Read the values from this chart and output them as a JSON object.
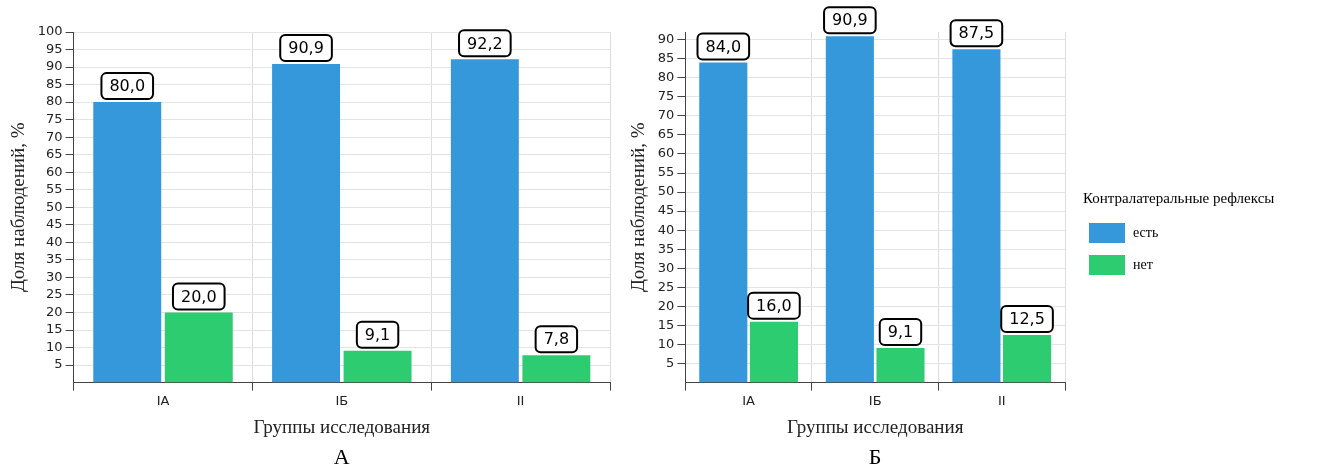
{
  "chart_data": [
    {
      "type": "bar",
      "xlabel": "Группы исследования",
      "ylabel": "Доля наблюдений, %",
      "categories": [
        "IA",
        "IБ",
        "II"
      ],
      "series": [
        {
          "color": "#3498db",
          "values": [
            80.0,
            90.9,
            92.2
          ],
          "value_labels": [
            "80,0",
            "90,9",
            "92,2"
          ]
        },
        {
          "color": "#2ecc71",
          "values": [
            20.0,
            9.1,
            7.8
          ],
          "value_labels": [
            "20,0",
            "9,1",
            "7,8"
          ]
        }
      ],
      "ylim": [
        0,
        100
      ],
      "yticks": [
        5,
        10,
        15,
        20,
        25,
        30,
        35,
        40,
        45,
        50,
        55,
        60,
        65,
        70,
        75,
        80,
        85,
        90,
        95,
        100
      ],
      "grid": true,
      "legend": false,
      "annotations": [
        "А"
      ]
    },
    {
      "type": "bar",
      "xlabel": "Группы исследования",
      "ylabel": "Доля наблюдений, %",
      "categories": [
        "IA",
        "IБ",
        "II"
      ],
      "legend_title": "Контралатеральные рефлексы",
      "series": [
        {
          "name": "есть",
          "color": "#3498db",
          "values": [
            84.0,
            90.9,
            87.5
          ],
          "value_labels": [
            "84,0",
            "90,9",
            "87,5"
          ]
        },
        {
          "name": "нет",
          "color": "#2ecc71",
          "values": [
            16.0,
            9.1,
            12.5
          ],
          "value_labels": [
            "16,0",
            "9,1",
            "12,5"
          ]
        }
      ],
      "ylim": [
        0,
        92
      ],
      "yticks": [
        5,
        10,
        15,
        20,
        25,
        30,
        35,
        40,
        45,
        50,
        55,
        60,
        65,
        70,
        75,
        80,
        85,
        90
      ],
      "grid": true,
      "legend": "right",
      "annotations": [
        "Б"
      ]
    }
  ]
}
